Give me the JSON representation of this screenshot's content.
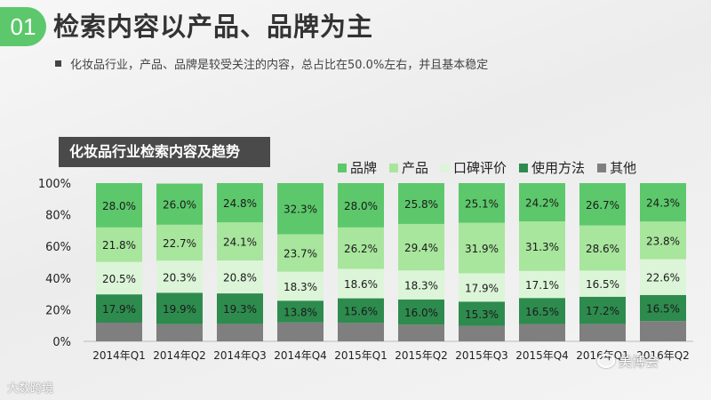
{
  "header": {
    "badge": "01",
    "title": "检索内容以产品、品牌为主",
    "subtitle": "化妆品行业，产品、品牌是较受关注的内容，总占比在50.0%左右，并且基本稳定"
  },
  "watermarks": {
    "left": "大数跨境",
    "right": "美博会"
  },
  "chart_data": {
    "type": "bar",
    "stacked": true,
    "title": "化妆品行业检索内容及趋势",
    "categories": [
      "2014年Q1",
      "2014年Q2",
      "2014年Q3",
      "2014年Q4",
      "2015年Q1",
      "2015年Q2",
      "2015年Q3",
      "2015年Q4",
      "2016年Q1",
      "2016年Q2"
    ],
    "ylim": [
      0,
      100
    ],
    "yticks": [
      "0%",
      "20%",
      "40%",
      "60%",
      "80%",
      "100%"
    ],
    "legend_position": "top-right",
    "series": [
      {
        "name": "其他",
        "color": "#7f7f7f",
        "values": [
          11.8,
          10.8,
          11.0,
          11.9,
          11.6,
          10.5,
          9.8,
          10.9,
          11.0,
          12.8
        ],
        "labeled": false
      },
      {
        "name": "使用方法",
        "color": "#2e8b4e",
        "values": [
          17.9,
          19.9,
          19.3,
          13.8,
          15.6,
          16.0,
          15.3,
          16.5,
          17.2,
          16.5
        ],
        "labels": [
          "17.9%",
          "19.9%",
          "19.3%",
          "13.8%",
          "15.6%",
          "16.0%",
          "15.3%",
          "16.5%",
          "17.2%",
          "16.5%"
        ],
        "labeled": true
      },
      {
        "name": "口碑评价",
        "color": "#dcf5d8",
        "values": [
          20.5,
          20.3,
          20.8,
          18.3,
          18.6,
          18.3,
          17.9,
          17.1,
          16.5,
          22.6
        ],
        "labels": [
          "20.5%",
          "20.3%",
          "20.8%",
          "18.3%",
          "18.6%",
          "18.3%",
          "17.9%",
          "17.1%",
          "16.5%",
          "22.6%"
        ],
        "labeled": true
      },
      {
        "name": "产品",
        "color": "#a8e59d",
        "values": [
          21.8,
          22.7,
          24.1,
          23.7,
          26.2,
          29.4,
          31.9,
          31.3,
          28.6,
          23.8
        ],
        "labels": [
          "21.8%",
          "22.7%",
          "24.1%",
          "23.7%",
          "26.2%",
          "29.4%",
          "31.9%",
          "31.3%",
          "28.6%",
          "23.8%"
        ],
        "labeled": true
      },
      {
        "name": "品牌",
        "color": "#5cc86b",
        "values": [
          28.0,
          26.0,
          24.8,
          32.3,
          28.0,
          25.8,
          25.1,
          24.2,
          26.7,
          24.3
        ],
        "labels": [
          "28.0%",
          "26.0%",
          "24.8%",
          "32.3%",
          "28.0%",
          "25.8%",
          "25.1%",
          "24.2%",
          "26.7%",
          "24.3%"
        ],
        "labeled": true
      }
    ],
    "legend_order": [
      "品牌",
      "产品",
      "口碑评价",
      "使用方法",
      "其他"
    ]
  }
}
